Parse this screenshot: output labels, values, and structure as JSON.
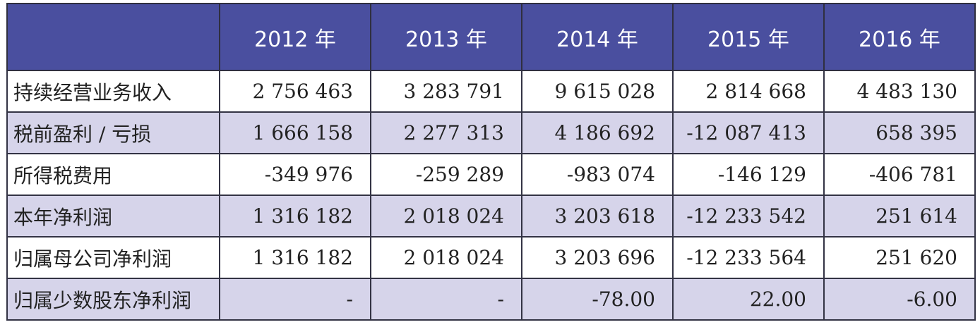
{
  "table": {
    "headers": [
      "",
      "2012 年",
      "2013 年",
      "2014 年",
      "2015 年",
      "2016 年"
    ],
    "rows": [
      {
        "label": "持续经营业务收入",
        "values": [
          "2 756 463",
          "3 283 791",
          "9 615 028",
          "2 814 668",
          "4 483 130"
        ]
      },
      {
        "label": "税前盈利 / 亏损",
        "values": [
          "1 666 158",
          "2 277 313",
          "4 186 692",
          "-12 087 413",
          "658 395"
        ]
      },
      {
        "label": "所得税费用",
        "values": [
          "-349 976",
          "-259 289",
          "-983 074",
          "-146 129",
          "-406 781"
        ]
      },
      {
        "label": "本年净利润",
        "values": [
          "1 316 182",
          "2 018 024",
          "3 203 618",
          "-12 233 542",
          "251 614"
        ]
      },
      {
        "label": "归属母公司净利润",
        "values": [
          "1 316 182",
          "2 018 024",
          "3 203 696",
          "-12 233 564",
          "251 620"
        ]
      },
      {
        "label": "归属少数股东净利润",
        "values": [
          "-",
          "-",
          "-78.00",
          "22.00",
          "-6.00"
        ]
      }
    ]
  },
  "colors": {
    "header_bg": "#4a4f9f",
    "header_text": "#ffffff",
    "row_shade": "#d6d4ea",
    "row_plain": "#ffffff"
  }
}
